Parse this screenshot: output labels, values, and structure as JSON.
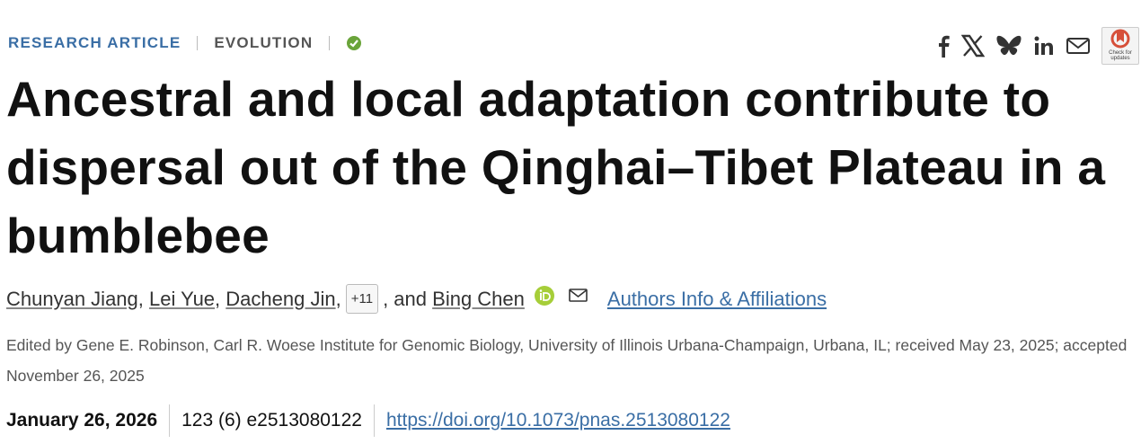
{
  "header": {
    "type": "RESEARCH ARTICLE",
    "section": "EVOLUTION",
    "badge": "Check for updates"
  },
  "title": "Ancestral and local adaptation contribute to dispersal out of the Qinghai–Tibet Plateau in a bumblebee",
  "authors": {
    "names": [
      "Chunyan Jiang",
      "Lei Yue",
      "Dacheng Jin"
    ],
    "separator": ",",
    "more": "+11",
    "conjunction": ", and",
    "last": "Bing Chen",
    "info_link": "Authors Info & Affiliations"
  },
  "edited": "Edited by Gene E. Robinson, Carl R. Woese Institute for Genomic Biology, University of Illinois Urbana-Champaign, Urbana, IL; received May 23, 2025; accepted November 26, 2025",
  "meta": {
    "date": "January 26, 2026",
    "issue": "123 (6) e2513080122",
    "doi": "https://doi.org/10.1073/pnas.2513080122"
  }
}
